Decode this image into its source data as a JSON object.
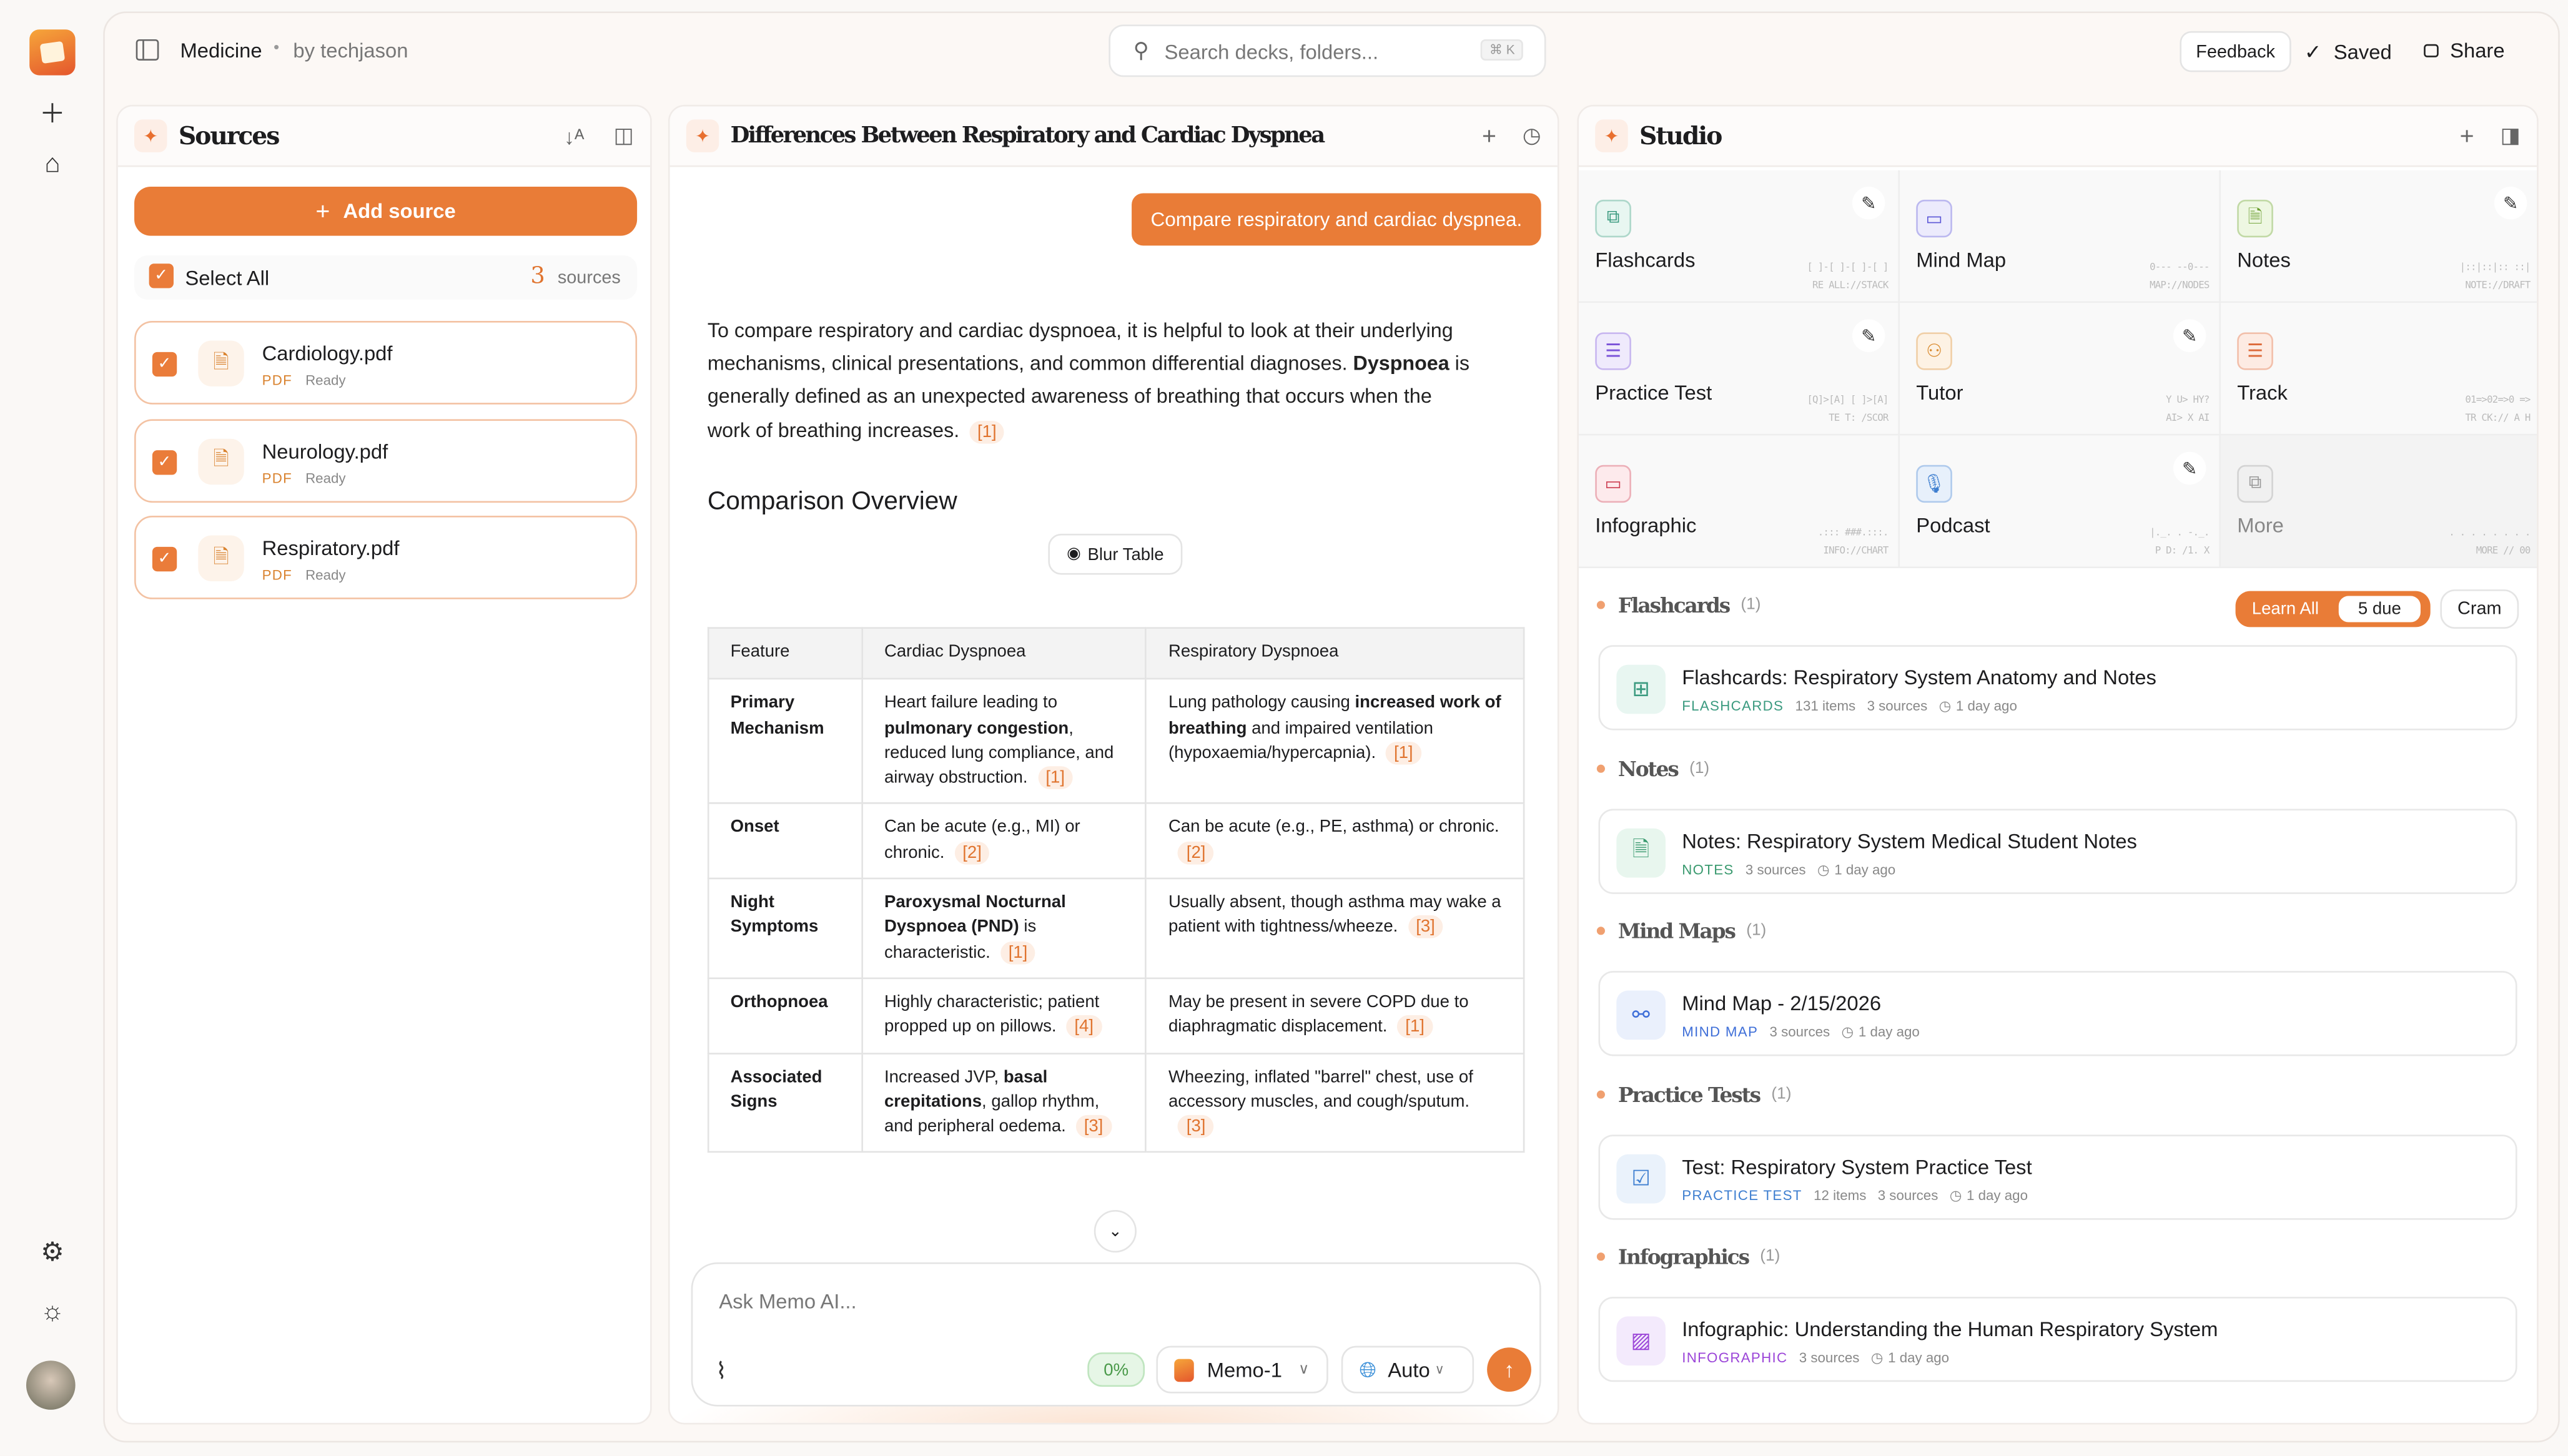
{
  "rail": {
    "icons": [
      "app-logo",
      "plus-icon",
      "home-icon",
      "settings-icon",
      "sun-icon",
      "avatar"
    ]
  },
  "topbar": {
    "deck": "Medicine",
    "separator": "•",
    "author": "by techjason",
    "search_placeholder": "Search decks, folders...",
    "search_shortcut": "⌘ K",
    "feedback": "Feedback",
    "saved": "Saved",
    "share": "Share"
  },
  "sources": {
    "title": "Sources",
    "add_source": "Add source",
    "select_all": "Select All",
    "count": "3",
    "count_label": "sources",
    "items": [
      {
        "name": "Cardiology.pdf",
        "type": "PDF",
        "status": "Ready",
        "checked": true
      },
      {
        "name": "Neurology.pdf",
        "type": "PDF",
        "status": "Ready",
        "checked": true
      },
      {
        "name": "Respiratory.pdf",
        "type": "PDF",
        "status": "Ready",
        "checked": true
      }
    ]
  },
  "chat": {
    "title": "Differences Between Respiratory and Cardiac Dyspnea",
    "user_message": "Compare respiratory and cardiac dyspnea.",
    "intro": [
      {
        "t": "To compare respiratory and cardiac dyspnoea, it is helpful to look at their underlying mechanisms, clinical presentations, and common differential diagnoses. "
      },
      {
        "t": "Dyspnoea",
        "b": true
      },
      {
        "t": " is generally defined as an unexpected awareness of breathing that occurs when the work of breathing increases."
      },
      {
        "cite": "[1]"
      }
    ],
    "section_heading": "Comparison Overview",
    "blur_table": "Blur Table",
    "table": {
      "headers": [
        "Feature",
        "Cardiac Dyspnoea",
        "Respiratory Dyspnoea"
      ],
      "rows": [
        {
          "feature": "Primary Mechanism",
          "cardiac": [
            {
              "t": "Heart failure leading to "
            },
            {
              "t": "pulmonary congestion",
              "b": true
            },
            {
              "t": ", reduced lung compliance, and airway obstruction."
            },
            {
              "cite": "[1]"
            }
          ],
          "respiratory": [
            {
              "t": "Lung pathology causing "
            },
            {
              "t": "increased work of breathing",
              "b": true
            },
            {
              "t": " and impaired ventilation (hypoxaemia/hypercapnia)."
            },
            {
              "cite": "[1]"
            }
          ]
        },
        {
          "feature": "Onset",
          "cardiac": [
            {
              "t": "Can be acute (e.g., MI) or chronic."
            },
            {
              "cite": "[2]"
            }
          ],
          "respiratory": [
            {
              "t": "Can be acute (e.g., PE, asthma) or chronic."
            },
            {
              "cite": "[2]"
            }
          ]
        },
        {
          "feature": "Night Symptoms",
          "cardiac": [
            {
              "t": "Paroxysmal Nocturnal Dyspnoea (PND)",
              "b": true
            },
            {
              "t": " is characteristic."
            },
            {
              "cite": "[1]"
            }
          ],
          "respiratory": [
            {
              "t": "Usually absent, though asthma may wake a patient with tightness/wheeze."
            },
            {
              "cite": "[3]"
            }
          ]
        },
        {
          "feature": "Orthopnoea",
          "cardiac": [
            {
              "t": "Highly characteristic; patient propped up on pillows."
            },
            {
              "cite": "[4]"
            }
          ],
          "respiratory": [
            {
              "t": "May be present in severe COPD due to diaphragmatic displacement."
            },
            {
              "cite": "[1]"
            }
          ]
        },
        {
          "feature": "Associated Signs",
          "cardiac": [
            {
              "t": "Increased JVP, "
            },
            {
              "t": "basal crepitations",
              "b": true
            },
            {
              "t": ", gallop rhythm, and peripheral oedema."
            },
            {
              "cite": "[3]"
            }
          ],
          "respiratory": [
            {
              "t": "Wheezing, inflated \"barrel\" chest, use of accessory muscles, and cough/sputum."
            },
            {
              "cite": "[3]"
            }
          ]
        }
      ]
    },
    "input_placeholder": "Ask Memo AI...",
    "context_usage": "0%",
    "model": "Memo-1",
    "language": "Auto"
  },
  "studio": {
    "title": "Studio",
    "tiles": [
      {
        "label": "Flashcards",
        "deco1": "[ ]-[ ]-[ ]-[ ]",
        "deco2": "RE ALL://STACK",
        "editable": true,
        "icon": "cards-icon",
        "color": "#3a9a7f",
        "bg": "#e8f6f1"
      },
      {
        "label": "Mind Map",
        "deco1": "0--- --0---",
        "deco2": "MAP://NODES",
        "editable": false,
        "icon": "monitor-icon",
        "color": "#5a55d6",
        "bg": "#ecebfc"
      },
      {
        "label": "Notes",
        "deco1": "|::|::|:: ::|",
        "deco2": "NOTE://DRAFT",
        "editable": true,
        "icon": "document-icon",
        "color": "#6a9e2e",
        "bg": "#eef7e2"
      },
      {
        "label": "Practice Test",
        "deco1": "[Q]>[A] [ ]>[A]",
        "deco2": "TE T: /SCOR",
        "editable": true,
        "icon": "test-icon",
        "color": "#7a52d8",
        "bg": "#efeafc"
      },
      {
        "label": "Tutor",
        "deco1": "Y U> HY?",
        "deco2": "AI> X AI",
        "editable": true,
        "icon": "person-icon",
        "color": "#d98a2e",
        "bg": "#fdf2e4"
      },
      {
        "label": "Track",
        "deco1": "01=>02=>0 =>",
        "deco2": "TR CK:// A H",
        "editable": false,
        "icon": "track-icon",
        "color": "#dd6a3a",
        "bg": "#fdebe3"
      },
      {
        "label": "Infographic",
        "deco1": ".::: ###.:::.",
        "deco2": "INFO://CHART",
        "editable": false,
        "icon": "infographic-icon",
        "color": "#cc3d50",
        "bg": "#fdeaec"
      },
      {
        "label": "Podcast",
        "deco1": "|._. . -._.",
        "deco2": "P D: /1. X",
        "editable": true,
        "icon": "microphone-icon",
        "color": "#3f7fd0",
        "bg": "#e7f0fb"
      },
      {
        "label": "More",
        "deco1": ". . . . . . . .",
        "deco2": "MORE // 00",
        "editable": false,
        "icon": "more-icon",
        "color": "#999999",
        "bg": "#f0f0f0"
      }
    ],
    "learn_all": "Learn All",
    "due": "5 due",
    "cram": "Cram",
    "sections": [
      {
        "heading": "Flashcards",
        "count": "(1)",
        "item": {
          "title": "Flashcards: Respiratory System Anatomy and Notes",
          "type": "FLASHCARDS",
          "items": "131 items",
          "sources": "3 sources",
          "time": "1 day ago",
          "color": "#3a9a7f",
          "bg": "#e8f6f1",
          "icon": "flashcards-icon"
        }
      },
      {
        "heading": "Notes",
        "count": "(1)",
        "item": {
          "title": "Notes: Respiratory System Medical Student Notes",
          "type": "NOTES",
          "sources": "3 sources",
          "time": "1 day ago",
          "color": "#3a9a6f",
          "bg": "#e8f6ee",
          "icon": "notes-icon"
        }
      },
      {
        "heading": "Mind Maps",
        "count": "(1)",
        "item": {
          "title": "Mind Map - 2/15/2026",
          "type": "MIND MAP",
          "sources": "3 sources",
          "time": "1 day ago",
          "color": "#3f6fd8",
          "bg": "#eaf0fc",
          "icon": "mind-map-icon"
        }
      },
      {
        "heading": "Practice Tests",
        "count": "(1)",
        "item": {
          "title": "Test: Respiratory System Practice Test",
          "type": "PRACTICE TEST",
          "items": "12 items",
          "sources": "3 sources",
          "time": "1 day ago",
          "color": "#3f7fd0",
          "bg": "#eaf2fb",
          "icon": "practice-test-icon"
        }
      },
      {
        "heading": "Infographics",
        "count": "(1)",
        "item": {
          "title": "Infographic: Understanding the Human Respiratory System",
          "type": "INFOGRAPHIC",
          "sources": "3 sources",
          "time": "1 day ago",
          "color": "#9b45d8",
          "bg": "#f3eafc",
          "icon": "image-icon"
        }
      }
    ]
  },
  "colors": {
    "accent": "#e97c37",
    "citation_bg": "#fdeee4"
  }
}
